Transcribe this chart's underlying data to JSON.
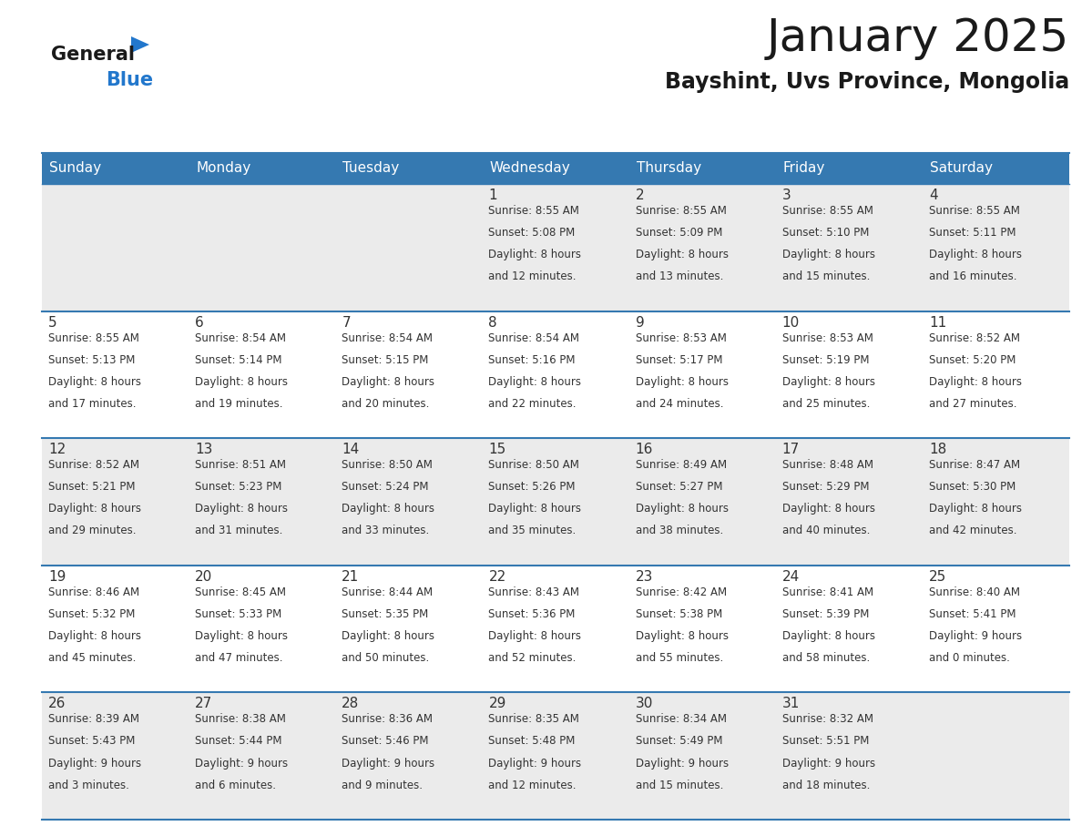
{
  "title": "January 2025",
  "subtitle": "Bayshint, Uvs Province, Mongolia",
  "days_of_week": [
    "Sunday",
    "Monday",
    "Tuesday",
    "Wednesday",
    "Thursday",
    "Friday",
    "Saturday"
  ],
  "header_bg": "#3579b1",
  "header_text_color": "#ffffff",
  "cell_bg_light": "#ebebeb",
  "cell_bg_white": "#ffffff",
  "row_line_color": "#3579b1",
  "text_color": "#333333",
  "title_color": "#1a1a1a",
  "logo_general_color": "#1a1a1a",
  "logo_blue_color": "#2277cc",
  "weeks": [
    [
      {
        "day": null,
        "sunrise": null,
        "sunset": null,
        "daylight_h": null,
        "daylight_m": null
      },
      {
        "day": null,
        "sunrise": null,
        "sunset": null,
        "daylight_h": null,
        "daylight_m": null
      },
      {
        "day": null,
        "sunrise": null,
        "sunset": null,
        "daylight_h": null,
        "daylight_m": null
      },
      {
        "day": 1,
        "sunrise": "8:55 AM",
        "sunset": "5:08 PM",
        "daylight_h": "8 hours",
        "daylight_m": "and 12 minutes."
      },
      {
        "day": 2,
        "sunrise": "8:55 AM",
        "sunset": "5:09 PM",
        "daylight_h": "8 hours",
        "daylight_m": "and 13 minutes."
      },
      {
        "day": 3,
        "sunrise": "8:55 AM",
        "sunset": "5:10 PM",
        "daylight_h": "8 hours",
        "daylight_m": "and 15 minutes."
      },
      {
        "day": 4,
        "sunrise": "8:55 AM",
        "sunset": "5:11 PM",
        "daylight_h": "8 hours",
        "daylight_m": "and 16 minutes."
      }
    ],
    [
      {
        "day": 5,
        "sunrise": "8:55 AM",
        "sunset": "5:13 PM",
        "daylight_h": "8 hours",
        "daylight_m": "and 17 minutes."
      },
      {
        "day": 6,
        "sunrise": "8:54 AM",
        "sunset": "5:14 PM",
        "daylight_h": "8 hours",
        "daylight_m": "and 19 minutes."
      },
      {
        "day": 7,
        "sunrise": "8:54 AM",
        "sunset": "5:15 PM",
        "daylight_h": "8 hours",
        "daylight_m": "and 20 minutes."
      },
      {
        "day": 8,
        "sunrise": "8:54 AM",
        "sunset": "5:16 PM",
        "daylight_h": "8 hours",
        "daylight_m": "and 22 minutes."
      },
      {
        "day": 9,
        "sunrise": "8:53 AM",
        "sunset": "5:17 PM",
        "daylight_h": "8 hours",
        "daylight_m": "and 24 minutes."
      },
      {
        "day": 10,
        "sunrise": "8:53 AM",
        "sunset": "5:19 PM",
        "daylight_h": "8 hours",
        "daylight_m": "and 25 minutes."
      },
      {
        "day": 11,
        "sunrise": "8:52 AM",
        "sunset": "5:20 PM",
        "daylight_h": "8 hours",
        "daylight_m": "and 27 minutes."
      }
    ],
    [
      {
        "day": 12,
        "sunrise": "8:52 AM",
        "sunset": "5:21 PM",
        "daylight_h": "8 hours",
        "daylight_m": "and 29 minutes."
      },
      {
        "day": 13,
        "sunrise": "8:51 AM",
        "sunset": "5:23 PM",
        "daylight_h": "8 hours",
        "daylight_m": "and 31 minutes."
      },
      {
        "day": 14,
        "sunrise": "8:50 AM",
        "sunset": "5:24 PM",
        "daylight_h": "8 hours",
        "daylight_m": "and 33 minutes."
      },
      {
        "day": 15,
        "sunrise": "8:50 AM",
        "sunset": "5:26 PM",
        "daylight_h": "8 hours",
        "daylight_m": "and 35 minutes."
      },
      {
        "day": 16,
        "sunrise": "8:49 AM",
        "sunset": "5:27 PM",
        "daylight_h": "8 hours",
        "daylight_m": "and 38 minutes."
      },
      {
        "day": 17,
        "sunrise": "8:48 AM",
        "sunset": "5:29 PM",
        "daylight_h": "8 hours",
        "daylight_m": "and 40 minutes."
      },
      {
        "day": 18,
        "sunrise": "8:47 AM",
        "sunset": "5:30 PM",
        "daylight_h": "8 hours",
        "daylight_m": "and 42 minutes."
      }
    ],
    [
      {
        "day": 19,
        "sunrise": "8:46 AM",
        "sunset": "5:32 PM",
        "daylight_h": "8 hours",
        "daylight_m": "and 45 minutes."
      },
      {
        "day": 20,
        "sunrise": "8:45 AM",
        "sunset": "5:33 PM",
        "daylight_h": "8 hours",
        "daylight_m": "and 47 minutes."
      },
      {
        "day": 21,
        "sunrise": "8:44 AM",
        "sunset": "5:35 PM",
        "daylight_h": "8 hours",
        "daylight_m": "and 50 minutes."
      },
      {
        "day": 22,
        "sunrise": "8:43 AM",
        "sunset": "5:36 PM",
        "daylight_h": "8 hours",
        "daylight_m": "and 52 minutes."
      },
      {
        "day": 23,
        "sunrise": "8:42 AM",
        "sunset": "5:38 PM",
        "daylight_h": "8 hours",
        "daylight_m": "and 55 minutes."
      },
      {
        "day": 24,
        "sunrise": "8:41 AM",
        "sunset": "5:39 PM",
        "daylight_h": "8 hours",
        "daylight_m": "and 58 minutes."
      },
      {
        "day": 25,
        "sunrise": "8:40 AM",
        "sunset": "5:41 PM",
        "daylight_h": "9 hours",
        "daylight_m": "and 0 minutes."
      }
    ],
    [
      {
        "day": 26,
        "sunrise": "8:39 AM",
        "sunset": "5:43 PM",
        "daylight_h": "9 hours",
        "daylight_m": "and 3 minutes."
      },
      {
        "day": 27,
        "sunrise": "8:38 AM",
        "sunset": "5:44 PM",
        "daylight_h": "9 hours",
        "daylight_m": "and 6 minutes."
      },
      {
        "day": 28,
        "sunrise": "8:36 AM",
        "sunset": "5:46 PM",
        "daylight_h": "9 hours",
        "daylight_m": "and 9 minutes."
      },
      {
        "day": 29,
        "sunrise": "8:35 AM",
        "sunset": "5:48 PM",
        "daylight_h": "9 hours",
        "daylight_m": "and 12 minutes."
      },
      {
        "day": 30,
        "sunrise": "8:34 AM",
        "sunset": "5:49 PM",
        "daylight_h": "9 hours",
        "daylight_m": "and 15 minutes."
      },
      {
        "day": 31,
        "sunrise": "8:32 AM",
        "sunset": "5:51 PM",
        "daylight_h": "9 hours",
        "daylight_m": "and 18 minutes."
      },
      {
        "day": null,
        "sunrise": null,
        "sunset": null,
        "daylight_h": null,
        "daylight_m": null
      }
    ]
  ]
}
